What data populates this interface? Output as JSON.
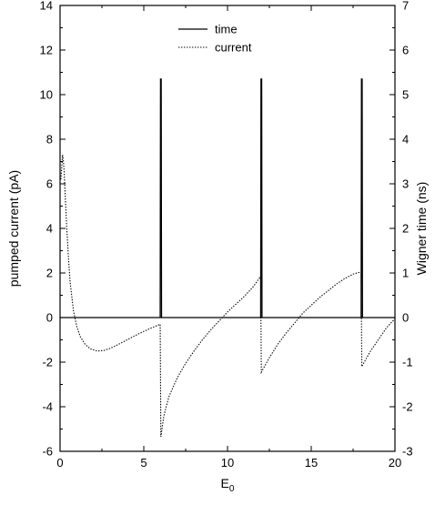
{
  "chart_data": {
    "type": "line",
    "xlabel": "E",
    "xlabel_subscript": "0",
    "ylabel_left": "pumped current  (pA)",
    "ylabel_right": "Wigner time (ns)",
    "xlim": [
      0,
      20
    ],
    "ylim_left": [
      -6,
      14
    ],
    "ylim_right": [
      -3,
      7
    ],
    "x_ticks": [
      0,
      5,
      10,
      15,
      20
    ],
    "y_ticks_left": [
      -6,
      -4,
      -2,
      0,
      2,
      4,
      6,
      8,
      10,
      12,
      14
    ],
    "y_ticks_right": [
      -3,
      -2,
      -1,
      0,
      1,
      2,
      3,
      4,
      5,
      6,
      7
    ],
    "grid": false,
    "legend_position": "top-center",
    "zero_line": true,
    "series": [
      {
        "name": "time",
        "style": "solid",
        "axis": "right",
        "x": [
          0,
          5.98,
          6.0,
          6.02,
          6.04,
          6.06,
          11.98,
          12.0,
          12.02,
          12.04,
          12.06,
          17.98,
          18.0,
          18.02,
          18.04,
          18.06,
          20
        ],
        "y": [
          0,
          0,
          5.35,
          5.35,
          5.35,
          0,
          0,
          5.35,
          5.35,
          5.35,
          0,
          0,
          5.35,
          5.35,
          5.35,
          0,
          0
        ]
      },
      {
        "name": "current",
        "style": "dotted",
        "axis": "left",
        "x": [
          0.05,
          0.15,
          0.2,
          0.25,
          0.3,
          0.4,
          0.5,
          0.6,
          0.8,
          1.0,
          1.2,
          1.5,
          1.8,
          2.2,
          2.6,
          3.0,
          3.5,
          4.0,
          4.5,
          5.0,
          5.5,
          5.98,
          6.02,
          6.2,
          6.5,
          7.0,
          7.5,
          8.0,
          8.5,
          9.0,
          9.5,
          10.0,
          10.5,
          11.0,
          11.5,
          11.98,
          12.02,
          12.5,
          13.0,
          13.5,
          14.0,
          14.5,
          15.0,
          15.5,
          16.0,
          16.5,
          17.0,
          17.5,
          17.98,
          18.02,
          18.5,
          19.0,
          19.5,
          20.0
        ],
        "y": [
          6.2,
          7.3,
          7.0,
          6.5,
          5.6,
          4.0,
          2.7,
          1.6,
          0.3,
          -0.4,
          -0.85,
          -1.2,
          -1.4,
          -1.5,
          -1.48,
          -1.38,
          -1.2,
          -1.0,
          -0.8,
          -0.62,
          -0.45,
          -0.3,
          -5.35,
          -4.4,
          -3.55,
          -2.7,
          -2.05,
          -1.5,
          -1.0,
          -0.55,
          -0.15,
          0.25,
          0.6,
          0.95,
          1.35,
          1.85,
          -2.45,
          -1.8,
          -1.2,
          -0.7,
          -0.25,
          0.2,
          0.55,
          0.9,
          1.2,
          1.5,
          1.75,
          1.95,
          2.05,
          -2.2,
          -1.55,
          -1.0,
          -0.45,
          -0.05
        ]
      }
    ],
    "colors": {
      "axis": "#000000",
      "time": "#000000",
      "current": "#000000"
    }
  }
}
